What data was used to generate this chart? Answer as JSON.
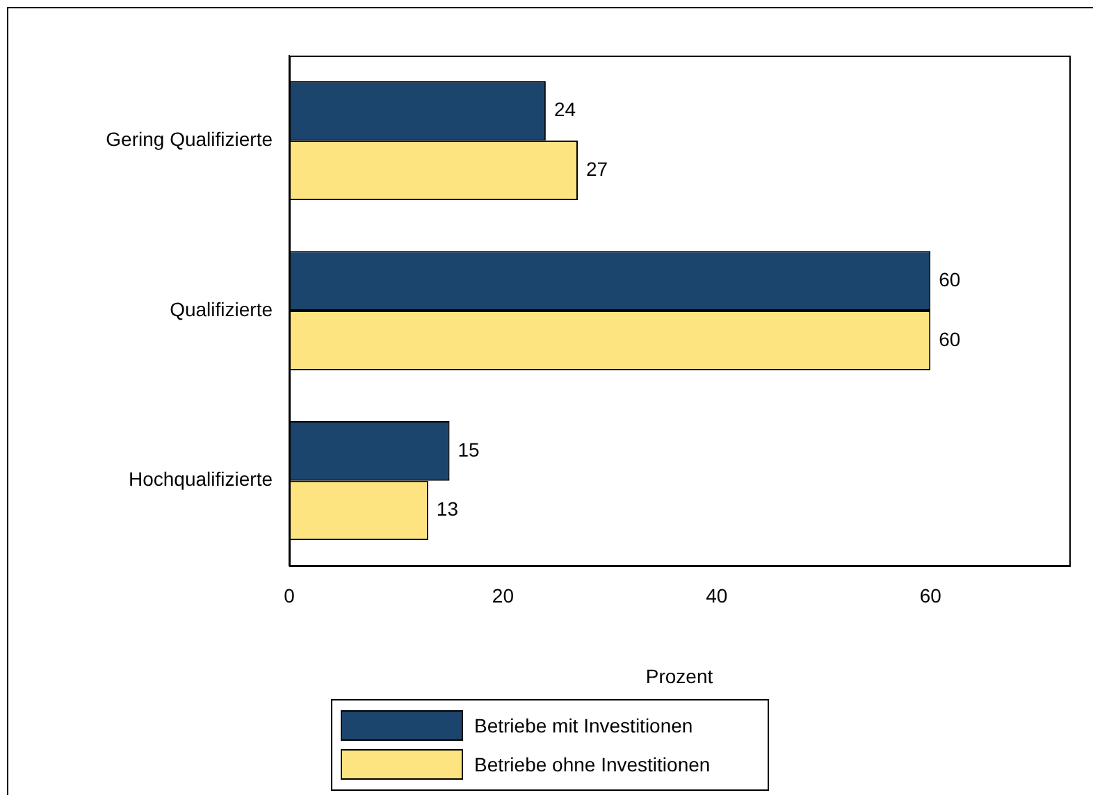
{
  "chart_data": {
    "type": "bar",
    "orientation": "horizontal",
    "xlabel": "Prozent",
    "categories": [
      "Gering Qualifizierte",
      "Qualifizierte",
      "Hochqualifizierte"
    ],
    "series": [
      {
        "name": "Betriebe mit Investitionen",
        "color": "#1b456d",
        "values": [
          24,
          60,
          15
        ]
      },
      {
        "name": "Betriebe ohne Investitionen",
        "color": "#fde480",
        "values": [
          27,
          60,
          13
        ]
      }
    ],
    "xlim": [
      0,
      73
    ],
    "xticks": [
      0,
      20,
      40,
      60
    ],
    "grid": false,
    "legend": "bottom",
    "data_labels": true
  }
}
